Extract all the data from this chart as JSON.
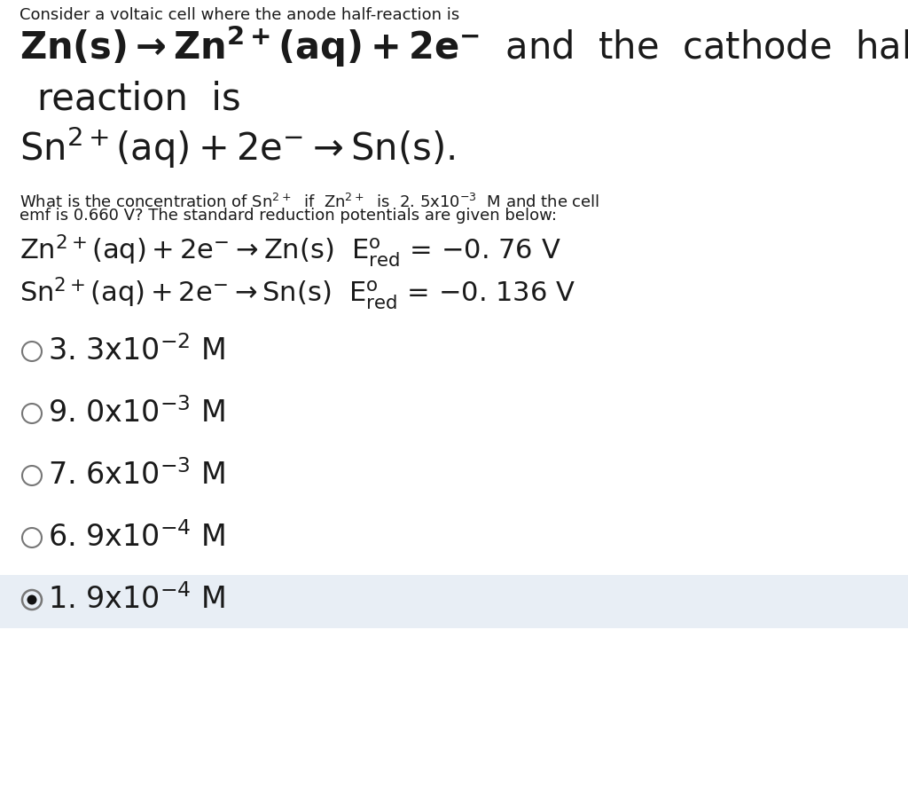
{
  "bg_color": "#ffffff",
  "highlight_color": "#e8eef5",
  "options": [
    {
      "label": "3. 3x10$^{-2}$ M",
      "selected": false
    },
    {
      "label": "9. 0x10$^{-3}$ M",
      "selected": false
    },
    {
      "label": "7. 6x10$^{-3}$ M",
      "selected": false
    },
    {
      "label": "6. 9x10$^{-4}$ M",
      "selected": false
    },
    {
      "label": "1. 9x10$^{-4}$ M",
      "selected": true
    }
  ],
  "font_size_small": 13,
  "font_size_large": 30,
  "font_size_medium": 22,
  "font_size_question": 13,
  "font_size_options": 24,
  "text_color": "#1a1a1a",
  "circle_color": "#777777"
}
